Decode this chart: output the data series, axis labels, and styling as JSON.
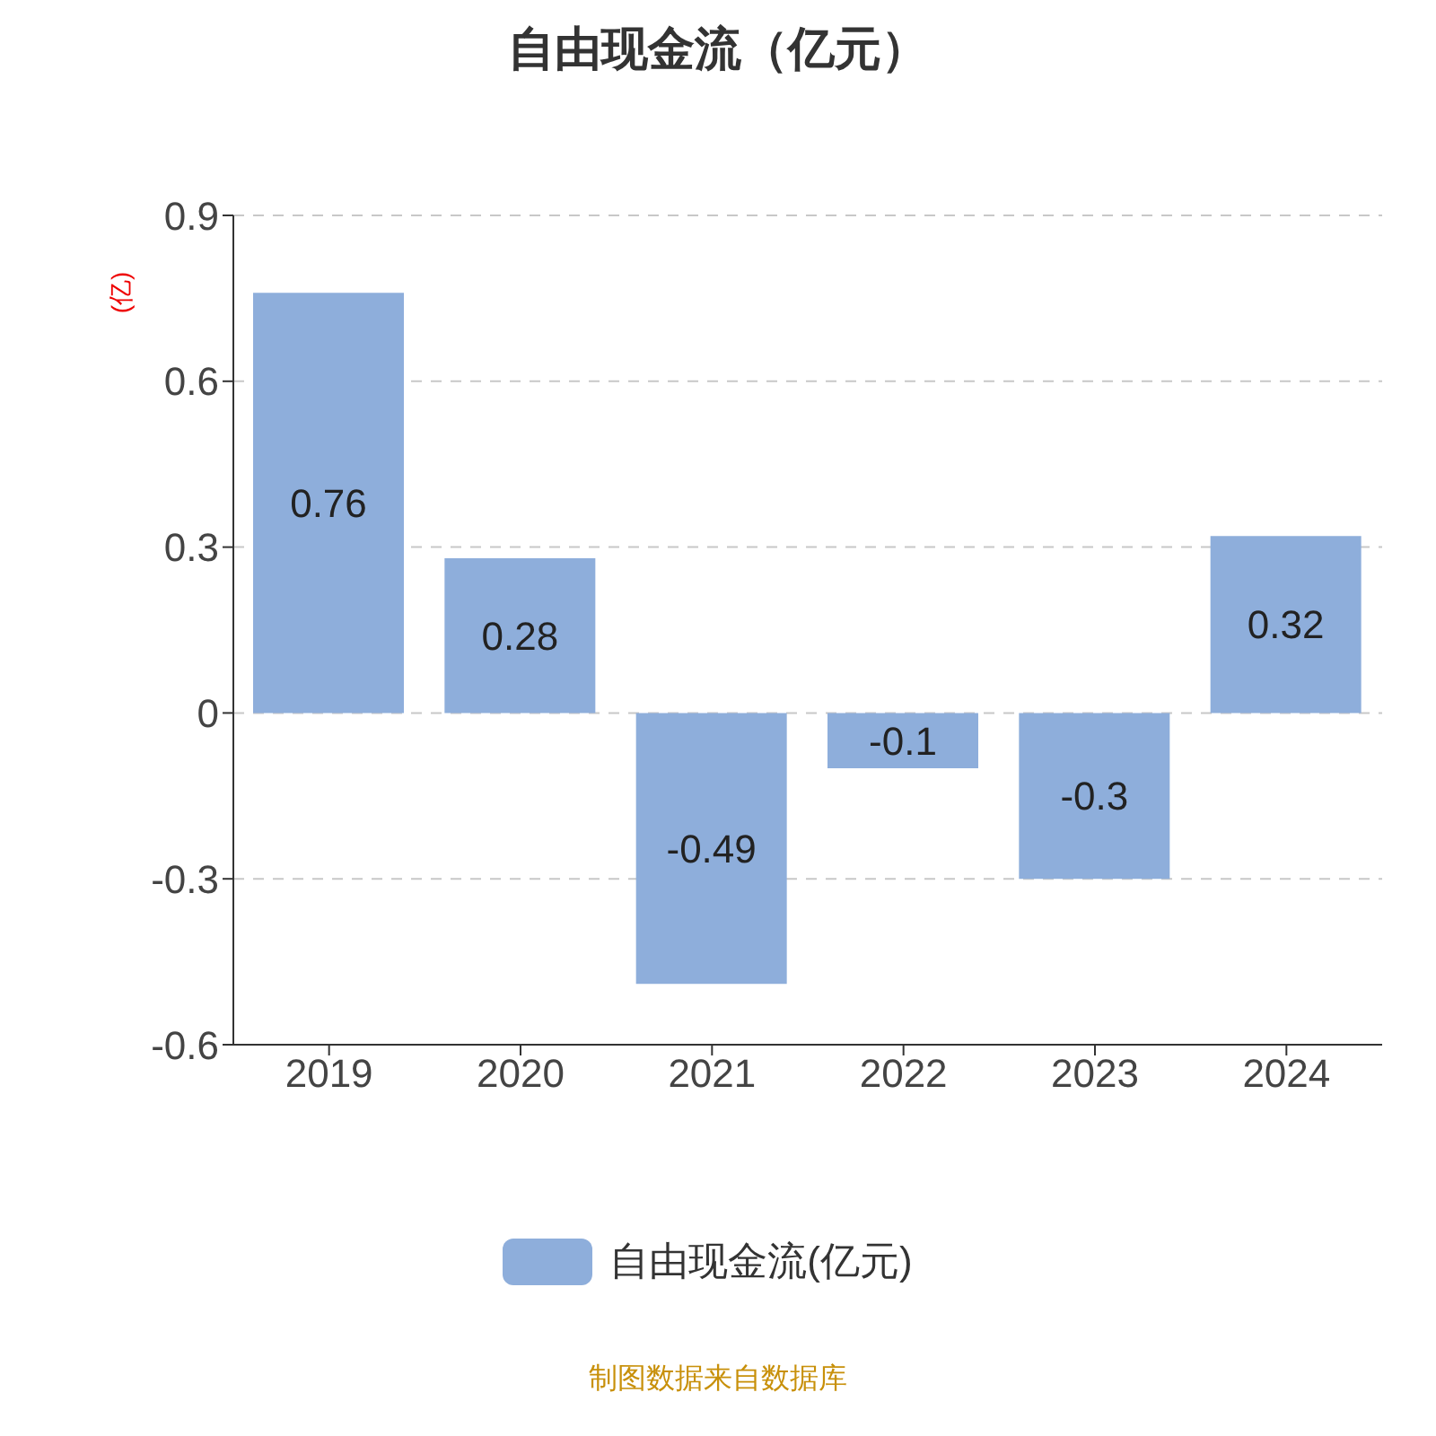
{
  "chart_data": {
    "type": "bar",
    "title": "自由现金流（亿元）",
    "ylabel": "(亿)",
    "categories": [
      "2019",
      "2020",
      "2021",
      "2022",
      "2023",
      "2024"
    ],
    "series": [
      {
        "name": "自由现金流(亿元)",
        "color": "#8eaedb",
        "values": [
          0.76,
          0.28,
          -0.49,
          -0.1,
          -0.3,
          0.32
        ]
      }
    ],
    "ylim": [
      -0.6,
      0.9
    ],
    "yticks": [
      -0.6,
      -0.3,
      0,
      0.3,
      0.6,
      0.9
    ],
    "grid": "y",
    "legend": "bottom",
    "data_labels": true,
    "annotations": [
      "制图数据来自数据库"
    ]
  }
}
